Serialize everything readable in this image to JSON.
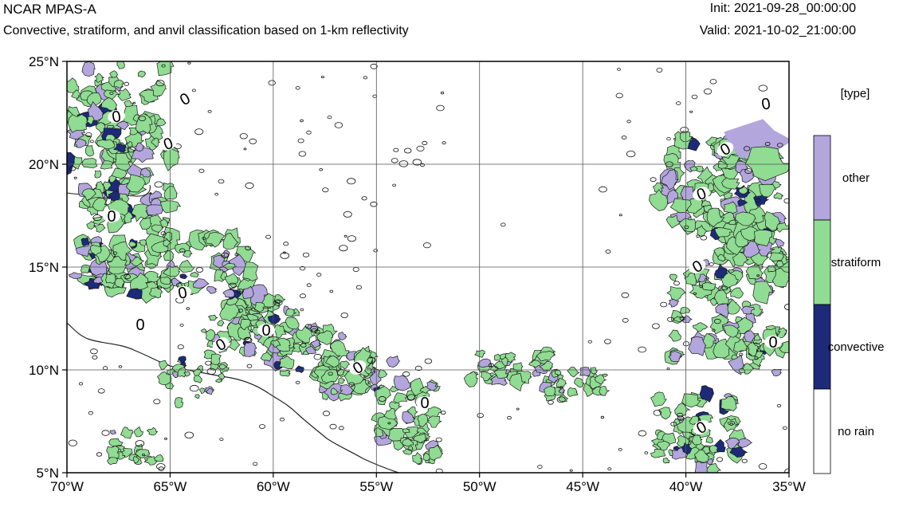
{
  "header": {
    "title": "NCAR MPAS-A",
    "subtitle": "Convective, stratiform, and anvil classification based on 1-km reflectivity",
    "init": "Init: 2021-09-28_00:00:00",
    "valid": "Valid: 2021-10-02_21:00:00"
  },
  "map": {
    "lon_range": [
      -70,
      -35
    ],
    "lat_range": [
      5,
      25
    ],
    "lat_ticks": [
      "5°N",
      "10°N",
      "15°N",
      "20°N",
      "25°N"
    ],
    "lon_ticks": [
      "70°W",
      "65°W",
      "60°W",
      "55°W",
      "50°W",
      "45°W",
      "40°W",
      "35°W"
    ],
    "contour_label": "0",
    "grid": true
  },
  "legend": {
    "title": "[type]",
    "categories": [
      {
        "label": "other",
        "color": "#b3a6dc"
      },
      {
        "label": "stratiform",
        "color": "#8fdc92"
      },
      {
        "label": "convective",
        "color": "#1c2a78"
      },
      {
        "label": "no rain",
        "color": "#ffffff"
      }
    ]
  }
}
